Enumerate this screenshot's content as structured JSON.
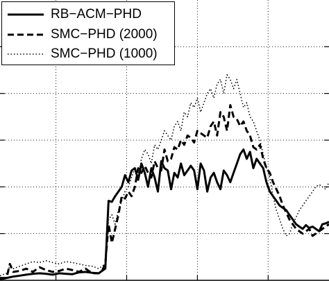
{
  "chart_data": {
    "type": "line",
    "title": "",
    "xlabel": "",
    "ylabel": "",
    "xlim": [
      0,
      100
    ],
    "ylim": [
      0,
      6
    ],
    "x_ticks": [
      17,
      38.5,
      60,
      81.5
    ],
    "y_ticks": [
      1,
      2,
      3,
      4,
      5
    ],
    "grid": true,
    "legend_position": "top-left",
    "series": [
      {
        "name": "RB−ACM−PHD",
        "style": "solid",
        "x": [
          0,
          2,
          4,
          6,
          8,
          10,
          12,
          14,
          16,
          18,
          20,
          22,
          24,
          26,
          28,
          30,
          31,
          32,
          33,
          34,
          35,
          36,
          37,
          38,
          39,
          40,
          41,
          42,
          43,
          44,
          45,
          46,
          47,
          48,
          49,
          50,
          51,
          52,
          53,
          54,
          55,
          56,
          57,
          58,
          59,
          60,
          61,
          62,
          63,
          64,
          65,
          66,
          67,
          68,
          69,
          70,
          71,
          72,
          73,
          74,
          75,
          76,
          77,
          78,
          79,
          80,
          81,
          82,
          83,
          84,
          85,
          86,
          87,
          88,
          89,
          90,
          91,
          92,
          93,
          94,
          95,
          96,
          97,
          98,
          99,
          100
        ],
        "y": [
          0.02,
          0.05,
          0.08,
          0.1,
          0.12,
          0.14,
          0.15,
          0.14,
          0.12,
          0.15,
          0.14,
          0.13,
          0.17,
          0.18,
          0.16,
          0.15,
          0.2,
          0.25,
          1.7,
          1.68,
          1.8,
          1.9,
          2.0,
          2.25,
          2.1,
          2.35,
          2.4,
          2.15,
          2.5,
          2.3,
          2.0,
          2.4,
          2.2,
          1.9,
          2.55,
          2.4,
          2.35,
          1.95,
          2.3,
          2.2,
          2.5,
          2.25,
          2.35,
          2.45,
          2.35,
          1.95,
          2.5,
          2.35,
          1.9,
          2.2,
          2.3,
          2.1,
          1.95,
          2.35,
          2.25,
          2.1,
          2.3,
          2.5,
          2.7,
          2.8,
          2.6,
          2.75,
          2.4,
          2.6,
          2.5,
          2.4,
          2.1,
          1.9,
          1.8,
          1.7,
          1.6,
          1.55,
          1.5,
          1.4,
          1.3,
          1.2,
          1.15,
          1.1,
          1.18,
          1.12,
          1.15,
          1.1,
          1.05,
          1.2,
          1.22,
          1.25
        ]
      },
      {
        "name": "SMC−PHD (2000)",
        "style": "dashed",
        "x": [
          0,
          2,
          3,
          4,
          6,
          8,
          10,
          12,
          14,
          16,
          18,
          20,
          22,
          24,
          26,
          28,
          30,
          31,
          32,
          33,
          34,
          35,
          36,
          37,
          38,
          39,
          40,
          41,
          42,
          43,
          44,
          45,
          46,
          47,
          48,
          49,
          50,
          51,
          52,
          53,
          54,
          55,
          56,
          57,
          58,
          59,
          60,
          61,
          62,
          63,
          64,
          65,
          66,
          67,
          68,
          69,
          70,
          71,
          72,
          73,
          74,
          75,
          76,
          77,
          78,
          79,
          80,
          81,
          82,
          83,
          84,
          85,
          86,
          87,
          88,
          89,
          90,
          91,
          92,
          93,
          94,
          95,
          96,
          97,
          98,
          99,
          100
        ],
        "y": [
          0.05,
          0.05,
          0.35,
          0.18,
          0.2,
          0.25,
          0.18,
          0.28,
          0.22,
          0.18,
          0.2,
          0.25,
          0.22,
          0.18,
          0.25,
          0.15,
          0.15,
          0.2,
          0.35,
          1.2,
          0.8,
          1.1,
          1.4,
          1.8,
          1.75,
          1.9,
          1.8,
          2.0,
          2.4,
          2.3,
          2.45,
          2.3,
          2.2,
          2.55,
          2.4,
          2.35,
          2.8,
          2.55,
          2.6,
          2.85,
          2.8,
          3.0,
          2.9,
          3.1,
          3.05,
          2.95,
          3.2,
          3.15,
          3.1,
          3.05,
          3.3,
          3.4,
          3.1,
          3.6,
          3.5,
          3.2,
          3.75,
          3.5,
          3.45,
          3.3,
          3.4,
          3.2,
          3.1,
          2.85,
          2.8,
          2.9,
          2.6,
          2.4,
          2.3,
          2.1,
          1.95,
          1.8,
          1.6,
          1.45,
          1.3,
          1.2,
          1.1,
          1.05,
          1.0,
          1.05,
          1.1,
          0.95,
          1.0,
          1.05,
          1.1,
          1.15,
          1.2
        ]
      },
      {
        "name": "SMC−PHD (1000)",
        "style": "dotted",
        "x": [
          0,
          2,
          3,
          4,
          6,
          8,
          10,
          12,
          14,
          16,
          18,
          20,
          22,
          24,
          26,
          28,
          30,
          31,
          32,
          33,
          34,
          35,
          36,
          37,
          38,
          39,
          40,
          41,
          42,
          43,
          44,
          45,
          46,
          47,
          48,
          49,
          50,
          51,
          52,
          53,
          54,
          55,
          56,
          57,
          58,
          59,
          60,
          61,
          62,
          63,
          64,
          65,
          66,
          67,
          68,
          69,
          70,
          71,
          72,
          73,
          74,
          75,
          76,
          77,
          78,
          79,
          80,
          81,
          82,
          83,
          84,
          85,
          86,
          87,
          88,
          89,
          90,
          91,
          92,
          93,
          94,
          95,
          96,
          97,
          98,
          99,
          100
        ],
        "y": [
          0.1,
          0.15,
          0.3,
          0.25,
          0.3,
          0.35,
          0.4,
          0.38,
          0.42,
          0.38,
          0.35,
          0.4,
          0.38,
          0.35,
          0.32,
          0.3,
          0.25,
          0.3,
          0.35,
          1.3,
          1.4,
          1.2,
          1.5,
          1.7,
          1.9,
          2.0,
          2.2,
          2.4,
          2.2,
          2.6,
          2.8,
          2.7,
          2.5,
          2.9,
          2.8,
          3.0,
          3.2,
          3.1,
          3.0,
          3.3,
          3.4,
          3.2,
          3.6,
          3.5,
          3.8,
          3.7,
          3.9,
          3.6,
          3.8,
          4.0,
          4.1,
          3.9,
          4.2,
          4.3,
          4.0,
          4.4,
          4.3,
          4.1,
          4.3,
          4.0,
          3.7,
          3.8,
          3.5,
          3.4,
          3.2,
          3.0,
          2.7,
          2.4,
          2.2,
          1.8,
          1.5,
          1.3,
          1.1,
          0.95,
          1.0,
          1.2,
          1.35,
          1.5,
          1.6,
          1.7,
          1.8,
          1.9,
          2.0,
          2.05,
          2.0,
          1.95,
          2.1
        ]
      }
    ]
  }
}
